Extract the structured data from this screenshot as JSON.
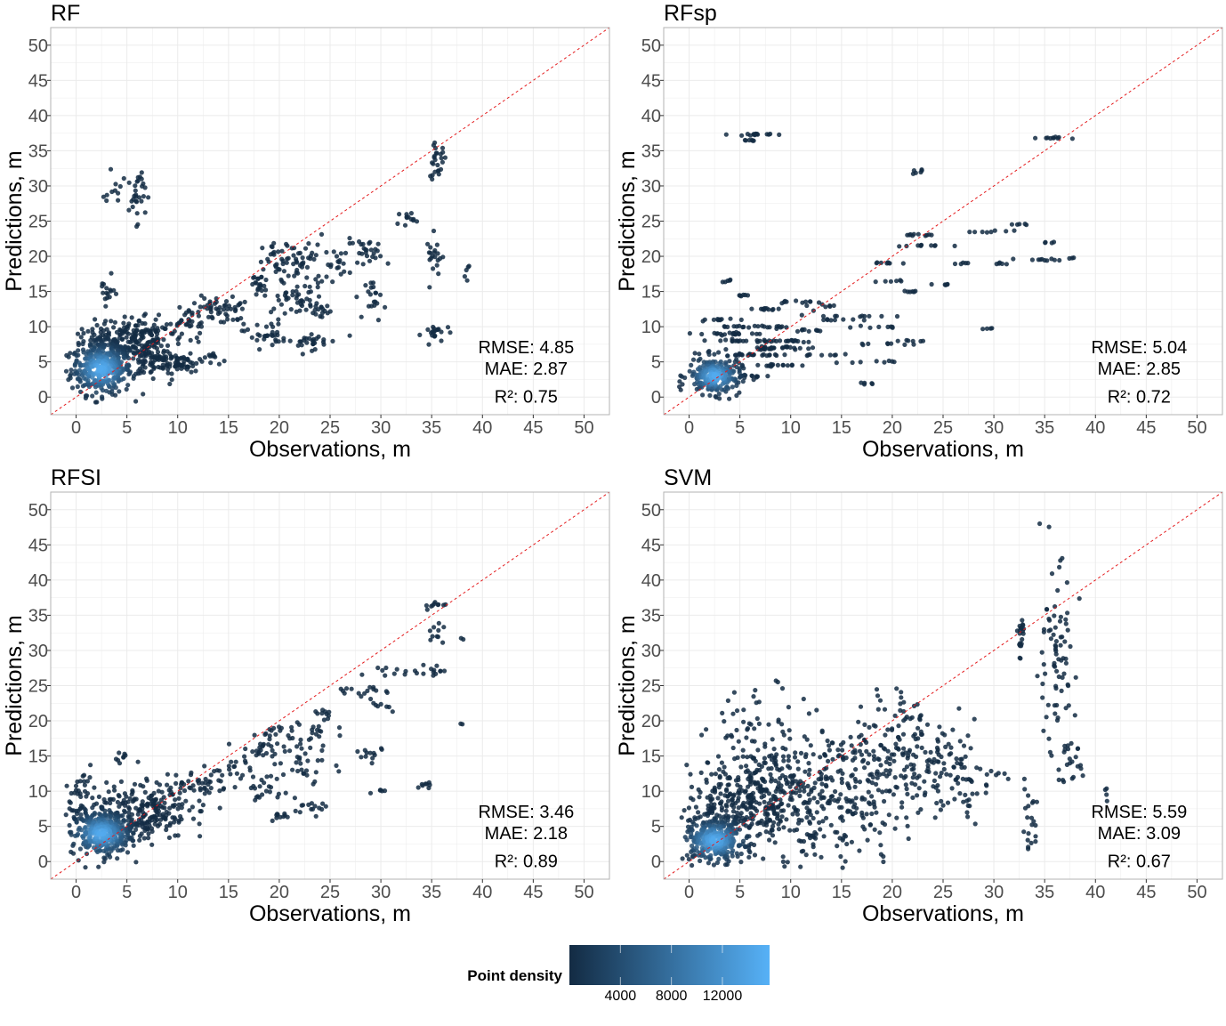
{
  "colors": {
    "low": "#132B43",
    "high": "#56B1F7",
    "identity_line": "#E41A1C",
    "grid": "#EBEBEB",
    "border": "#B3B3B3",
    "tick_text": "#4D4D4D"
  },
  "chart_data": [
    {
      "type": "scatter",
      "title": "RF",
      "xlabel": "Observations, m",
      "ylabel": "Predictions, m",
      "xlim": [
        -2.5,
        52.5
      ],
      "ylim": [
        -2.5,
        52.5
      ],
      "xticks": [
        0,
        5,
        10,
        15,
        20,
        25,
        30,
        35,
        40,
        45,
        50
      ],
      "yticks": [
        0,
        5,
        10,
        15,
        20,
        25,
        30,
        35,
        40,
        45,
        50
      ],
      "identity_line": true,
      "grid": true,
      "metrics": {
        "rmse": "RMSE: 4.85",
        "mae": "MAE: 2.87",
        "r2": "R²: 0.75"
      },
      "clusters_xy_sx_sy_n": [
        [
          2.5,
          4,
          1.5,
          1.8,
          320
        ],
        [
          4,
          7,
          2.5,
          1.8,
          220
        ],
        [
          8,
          5,
          2,
          1.4,
          80
        ],
        [
          7,
          9,
          2,
          1.5,
          80
        ],
        [
          10,
          5,
          1,
          0.5,
          40
        ],
        [
          11,
          11,
          1,
          1,
          30
        ],
        [
          13.5,
          12.5,
          0.7,
          1,
          25
        ],
        [
          15.5,
          12.5,
          0.5,
          1,
          20
        ],
        [
          18.5,
          9,
          1,
          1,
          30
        ],
        [
          18,
          16,
          0.5,
          1,
          20
        ],
        [
          20,
          19,
          0.8,
          1.5,
          30
        ],
        [
          22.5,
          19,
          1,
          2,
          40
        ],
        [
          21.5,
          14,
          1.5,
          1,
          40
        ],
        [
          23,
          8,
          1.5,
          0.6,
          30
        ],
        [
          24,
          12,
          0.6,
          0.5,
          15
        ],
        [
          25.5,
          19,
          0.5,
          1,
          15
        ],
        [
          29,
          20.5,
          1.5,
          1,
          30
        ],
        [
          29.5,
          14,
          0.5,
          1.5,
          20
        ],
        [
          32.5,
          25.5,
          0.4,
          0.5,
          12
        ],
        [
          35.5,
          33.5,
          0.5,
          1.2,
          25
        ],
        [
          35.3,
          20,
          0.4,
          1.5,
          20
        ],
        [
          35.5,
          9,
          0.7,
          0.7,
          20
        ],
        [
          6,
          29,
          0.4,
          2,
          25
        ],
        [
          4.5,
          29,
          1,
          1.5,
          15
        ],
        [
          13.5,
          5.5,
          0.4,
          0.5,
          10
        ],
        [
          3,
          15,
          0.4,
          1,
          15
        ],
        [
          38.5,
          18,
          0.2,
          0.6,
          5
        ]
      ]
    },
    {
      "type": "scatter",
      "title": "RFsp",
      "xlabel": "Observations, m",
      "ylabel": "Predictions, m",
      "xlim": [
        -2.5,
        52.5
      ],
      "ylim": [
        -2.5,
        52.5
      ],
      "xticks": [
        0,
        5,
        10,
        15,
        20,
        25,
        30,
        35,
        40,
        45,
        50
      ],
      "yticks": [
        0,
        5,
        10,
        15,
        20,
        25,
        30,
        35,
        40,
        45,
        50
      ],
      "identity_line": true,
      "grid": true,
      "metrics": {
        "rmse": "RMSE: 5.04",
        "mae": "MAE: 2.85",
        "r2": "R²: 0.72"
      },
      "clusters_xy_sx_sy_n": [
        [
          2.5,
          3,
          1.3,
          1.3,
          260
        ],
        [
          6,
          37.3,
          1,
          0.08,
          15
        ],
        [
          6,
          36.5,
          0.5,
          0.08,
          6
        ],
        [
          35.5,
          36.8,
          0.8,
          0.08,
          10
        ],
        [
          22.5,
          32,
          0.3,
          0.15,
          6
        ],
        [
          22,
          23,
          1,
          0.08,
          10
        ],
        [
          23,
          21.5,
          1.2,
          0.08,
          10
        ],
        [
          26.5,
          19,
          0.5,
          0.08,
          5
        ],
        [
          30,
          23.5,
          1,
          0.08,
          8
        ],
        [
          32.5,
          24.5,
          0.4,
          0.08,
          5
        ],
        [
          35,
          19.5,
          1.2,
          0.08,
          10
        ],
        [
          35.5,
          22,
          0.4,
          0.08,
          4
        ],
        [
          30.5,
          19,
          0.5,
          0.08,
          5
        ],
        [
          19,
          19,
          1,
          0.08,
          8
        ],
        [
          20,
          16.5,
          1,
          0.08,
          6
        ],
        [
          25,
          16,
          0.6,
          0.08,
          5
        ],
        [
          22,
          15,
          1,
          0.08,
          6
        ],
        [
          14,
          13,
          1,
          0.08,
          6
        ],
        [
          16,
          11.5,
          2,
          0.08,
          10
        ],
        [
          18,
          10,
          1.5,
          0.08,
          8
        ],
        [
          18.5,
          5,
          1.2,
          0.08,
          8
        ],
        [
          19.5,
          7.5,
          1.5,
          0.08,
          8
        ],
        [
          22,
          8,
          1,
          0.08,
          6
        ],
        [
          17.5,
          2,
          0.7,
          0.08,
          5
        ],
        [
          29.5,
          9.7,
          0.4,
          0.08,
          4
        ],
        [
          37.5,
          19.8,
          0.2,
          0.08,
          3
        ],
        [
          4,
          9,
          1.5,
          0.1,
          20
        ],
        [
          7,
          10,
          2,
          0.1,
          20
        ],
        [
          9,
          8,
          2,
          0.1,
          20
        ],
        [
          6,
          6,
          2,
          0.1,
          25
        ],
        [
          10,
          7,
          1.5,
          0.1,
          15
        ],
        [
          3,
          11,
          1,
          0.1,
          10
        ],
        [
          8,
          12.5,
          1.5,
          0.1,
          12
        ],
        [
          11,
          13.5,
          1,
          0.1,
          10
        ],
        [
          12,
          9.5,
          1,
          0.1,
          10
        ],
        [
          5,
          14.5,
          0.5,
          0.1,
          6
        ],
        [
          4,
          16.5,
          0.4,
          0.1,
          5
        ],
        [
          9,
          4.5,
          1.5,
          0.1,
          15
        ],
        [
          6,
          3,
          1,
          0.1,
          12
        ],
        [
          14.5,
          11,
          1,
          0.1,
          8
        ],
        [
          13,
          6,
          1,
          0.1,
          8
        ],
        [
          5,
          8,
          1.5,
          0.1,
          15
        ],
        [
          8,
          7,
          1.5,
          0.1,
          15
        ]
      ]
    },
    {
      "type": "scatter",
      "title": "RFSI",
      "xlabel": "Observations, m",
      "ylabel": "Predictions, m",
      "xlim": [
        -2.5,
        52.5
      ],
      "ylim": [
        -2.5,
        52.5
      ],
      "xticks": [
        0,
        5,
        10,
        15,
        20,
        25,
        30,
        35,
        40,
        45,
        50
      ],
      "yticks": [
        0,
        5,
        10,
        15,
        20,
        25,
        30,
        35,
        40,
        45,
        50
      ],
      "identity_line": true,
      "grid": true,
      "metrics": {
        "rmse": "RMSE: 3.46",
        "mae": "MAE: 2.18",
        "r2": "R²: 0.89"
      },
      "clusters_xy_sx_sy_n": [
        [
          2.5,
          4,
          1.5,
          1.6,
          320
        ],
        [
          5,
          7,
          3,
          2,
          220
        ],
        [
          9,
          8,
          2,
          1.5,
          60
        ],
        [
          12,
          11,
          1.5,
          1,
          40
        ],
        [
          15,
          13,
          1,
          0.8,
          20
        ],
        [
          18,
          16,
          1,
          0.8,
          20
        ],
        [
          21,
          18,
          2,
          1.2,
          40
        ],
        [
          22,
          14,
          1.5,
          2,
          30
        ],
        [
          19,
          10,
          1,
          1,
          20
        ],
        [
          20,
          6.5,
          0.6,
          0.3,
          10
        ],
        [
          23,
          8,
          1,
          0.5,
          15
        ],
        [
          24.5,
          21,
          0.5,
          0.5,
          10
        ],
        [
          28,
          24,
          1.5,
          0.4,
          15
        ],
        [
          30,
          22,
          0.5,
          0.5,
          8
        ],
        [
          29,
          15,
          0.8,
          1,
          12
        ],
        [
          31,
          27,
          1,
          0.5,
          10
        ],
        [
          35,
          27,
          0.8,
          0.5,
          12
        ],
        [
          35.5,
          32.5,
          0.4,
          1,
          10
        ],
        [
          35.5,
          36.5,
          0.7,
          0.3,
          10
        ],
        [
          34.5,
          11,
          0.6,
          0.2,
          8
        ],
        [
          4.5,
          15,
          0.3,
          0.4,
          8
        ],
        [
          1,
          11,
          0.5,
          1,
          15
        ],
        [
          38,
          31.7,
          0.1,
          0.1,
          2
        ],
        [
          38,
          19.5,
          0.1,
          0.1,
          2
        ],
        [
          30,
          10,
          0.5,
          0.3,
          5
        ]
      ]
    },
    {
      "type": "scatter",
      "title": "SVM",
      "xlabel": "Observations, m",
      "ylabel": "Predictions, m",
      "xlim": [
        -2.5,
        52.5
      ],
      "ylim": [
        -2.5,
        52.5
      ],
      "xticks": [
        0,
        5,
        10,
        15,
        20,
        25,
        30,
        35,
        40,
        45,
        50
      ],
      "yticks": [
        0,
        5,
        10,
        15,
        20,
        25,
        30,
        35,
        40,
        45,
        50
      ],
      "identity_line": true,
      "grid": true,
      "metrics": {
        "rmse": "RMSE: 5.59",
        "mae": "MAE: 3.09",
        "r2": "R²: 0.67"
      },
      "clusters_xy_sx_sy_n": [
        [
          2.5,
          3,
          1.5,
          1.5,
          320
        ],
        [
          5,
          8,
          3,
          3,
          260
        ],
        [
          8,
          12,
          3,
          5,
          160
        ],
        [
          12,
          8,
          3,
          4,
          130
        ],
        [
          17,
          10,
          3,
          4,
          130
        ],
        [
          21,
          15,
          3,
          4,
          100
        ],
        [
          25,
          14,
          2,
          4,
          60
        ],
        [
          20,
          20,
          1.5,
          3,
          30
        ],
        [
          27,
          11,
          2,
          2,
          30
        ],
        [
          32.7,
          32,
          0.2,
          1.5,
          20
        ],
        [
          36,
          28,
          1,
          7,
          80
        ],
        [
          37.5,
          14,
          0.6,
          1.5,
          20
        ],
        [
          33.5,
          6.5,
          0.5,
          2,
          15
        ],
        [
          33.5,
          3,
          0.3,
          0.5,
          6
        ],
        [
          41,
          9.5,
          0.1,
          0.5,
          4
        ],
        [
          6,
          21,
          2,
          3,
          20
        ]
      ]
    }
  ],
  "legend": {
    "title": "Point density",
    "range": [
      0,
      15700
    ],
    "ticks": [
      4000,
      8000,
      12000
    ],
    "tick_labels": [
      "4000",
      "8000",
      "12000"
    ]
  }
}
